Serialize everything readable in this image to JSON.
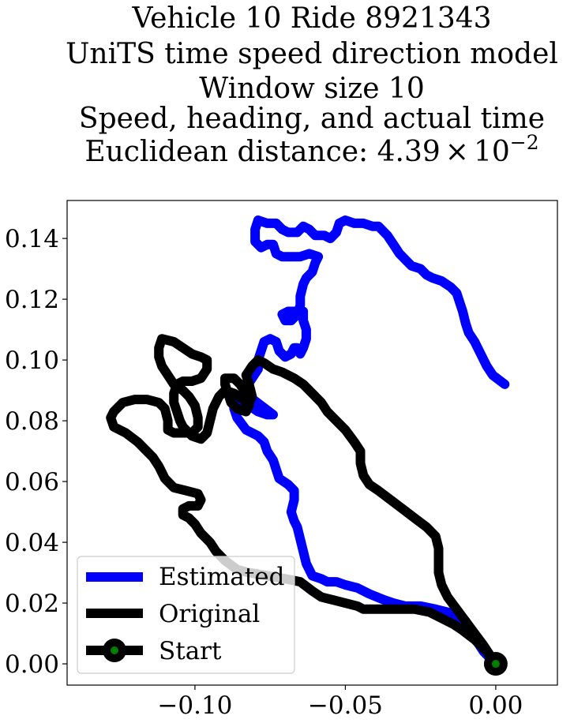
{
  "chart_data": {
    "type": "line",
    "title_lines": [
      "Vehicle 10 Ride 8921343",
      "UniTS time speed direction model",
      "Window size 10",
      "Speed, heading, and actual time"
    ],
    "title_distance_prefix": "Euclidean distance: 4.39",
    "title_distance_times": "×",
    "title_distance_base": "10",
    "title_distance_exponent": "−2",
    "xlim": [
      -0.1425,
      0.0205
    ],
    "ylim": [
      -0.007,
      0.1525
    ],
    "x_ticks": [
      {
        "value": -0.1,
        "label": "−0.10"
      },
      {
        "value": -0.05,
        "label": "−0.05"
      },
      {
        "value": 0.0,
        "label": "0.00"
      }
    ],
    "y_ticks": [
      {
        "value": 0.0,
        "label": "0.00"
      },
      {
        "value": 0.02,
        "label": "0.02"
      },
      {
        "value": 0.04,
        "label": "0.04"
      },
      {
        "value": 0.06,
        "label": "0.06"
      },
      {
        "value": 0.08,
        "label": "0.08"
      },
      {
        "value": 0.1,
        "label": "0.10"
      },
      {
        "value": 0.12,
        "label": "0.12"
      },
      {
        "value": 0.14,
        "label": "0.14"
      }
    ],
    "grid": false,
    "legend_position": "lower-left",
    "series": [
      {
        "name": "Estimated",
        "color": "#0000ff",
        "points": [
          [
            0.0,
            0.0
          ],
          [
            -0.004,
            0.004
          ],
          [
            -0.008,
            0.01
          ],
          [
            -0.01,
            0.014
          ],
          [
            -0.013,
            0.016
          ],
          [
            -0.016,
            0.017
          ],
          [
            -0.02,
            0.018
          ],
          [
            -0.025,
            0.019
          ],
          [
            -0.03,
            0.019
          ],
          [
            -0.034,
            0.02
          ],
          [
            -0.037,
            0.021
          ],
          [
            -0.042,
            0.023
          ],
          [
            -0.046,
            0.025
          ],
          [
            -0.05,
            0.026
          ],
          [
            -0.053,
            0.027
          ],
          [
            -0.056,
            0.027
          ],
          [
            -0.058,
            0.028
          ],
          [
            -0.061,
            0.029
          ],
          [
            -0.063,
            0.033
          ],
          [
            -0.064,
            0.037
          ],
          [
            -0.065,
            0.041
          ],
          [
            -0.066,
            0.045
          ],
          [
            -0.067,
            0.047
          ],
          [
            -0.068,
            0.05
          ],
          [
            -0.067,
            0.054
          ],
          [
            -0.067,
            0.057
          ],
          [
            -0.069,
            0.059
          ],
          [
            -0.072,
            0.061
          ],
          [
            -0.073,
            0.064
          ],
          [
            -0.074,
            0.067
          ],
          [
            -0.076,
            0.07
          ],
          [
            -0.077,
            0.073
          ],
          [
            -0.079,
            0.075
          ],
          [
            -0.083,
            0.077
          ],
          [
            -0.086,
            0.081
          ],
          [
            -0.087,
            0.084
          ],
          [
            -0.085,
            0.086
          ],
          [
            -0.082,
            0.085
          ],
          [
            -0.079,
            0.083
          ],
          [
            -0.076,
            0.082
          ],
          [
            -0.074,
            0.082
          ],
          [
            -0.078,
            0.085
          ],
          [
            -0.082,
            0.088
          ],
          [
            -0.083,
            0.091
          ],
          [
            -0.081,
            0.094
          ],
          [
            -0.079,
            0.097
          ],
          [
            -0.079,
            0.1
          ],
          [
            -0.078,
            0.103
          ],
          [
            -0.077,
            0.106
          ],
          [
            -0.075,
            0.107
          ],
          [
            -0.073,
            0.106
          ],
          [
            -0.072,
            0.103
          ],
          [
            -0.07,
            0.101
          ],
          [
            -0.068,
            0.102
          ],
          [
            -0.067,
            0.104
          ],
          [
            -0.066,
            0.104
          ],
          [
            -0.065,
            0.102
          ],
          [
            -0.064,
            0.104
          ],
          [
            -0.063,
            0.107
          ],
          [
            -0.063,
            0.11
          ],
          [
            -0.064,
            0.113
          ],
          [
            -0.064,
            0.116
          ],
          [
            -0.066,
            0.116
          ],
          [
            -0.069,
            0.116
          ],
          [
            -0.071,
            0.115
          ],
          [
            -0.07,
            0.113
          ],
          [
            -0.068,
            0.113
          ],
          [
            -0.066,
            0.115
          ],
          [
            -0.065,
            0.118
          ],
          [
            -0.065,
            0.121
          ],
          [
            -0.064,
            0.125
          ],
          [
            -0.063,
            0.127
          ],
          [
            -0.061,
            0.129
          ],
          [
            -0.06,
            0.132
          ],
          [
            -0.059,
            0.134
          ],
          [
            -0.062,
            0.135
          ],
          [
            -0.065,
            0.134
          ],
          [
            -0.068,
            0.134
          ],
          [
            -0.071,
            0.134
          ],
          [
            -0.073,
            0.135
          ],
          [
            -0.074,
            0.138
          ],
          [
            -0.076,
            0.138
          ],
          [
            -0.078,
            0.137
          ],
          [
            -0.08,
            0.139
          ],
          [
            -0.08,
            0.143
          ],
          [
            -0.079,
            0.146
          ],
          [
            -0.076,
            0.145
          ],
          [
            -0.073,
            0.145
          ],
          [
            -0.071,
            0.143
          ],
          [
            -0.069,
            0.142
          ],
          [
            -0.066,
            0.142
          ],
          [
            -0.064,
            0.144
          ],
          [
            -0.062,
            0.143
          ],
          [
            -0.06,
            0.141
          ],
          [
            -0.057,
            0.141
          ],
          [
            -0.055,
            0.14
          ],
          [
            -0.053,
            0.142
          ],
          [
            -0.052,
            0.145
          ],
          [
            -0.05,
            0.146
          ],
          [
            -0.047,
            0.145
          ],
          [
            -0.044,
            0.145
          ],
          [
            -0.041,
            0.144
          ],
          [
            -0.039,
            0.144
          ],
          [
            -0.036,
            0.141
          ],
          [
            -0.034,
            0.138
          ],
          [
            -0.032,
            0.135
          ],
          [
            -0.03,
            0.133
          ],
          [
            -0.028,
            0.131
          ],
          [
            -0.025,
            0.13
          ],
          [
            -0.023,
            0.128
          ],
          [
            -0.021,
            0.127
          ],
          [
            -0.018,
            0.126
          ],
          [
            -0.015,
            0.124
          ],
          [
            -0.013,
            0.122
          ],
          [
            -0.012,
            0.119
          ],
          [
            -0.011,
            0.116
          ],
          [
            -0.01,
            0.112
          ],
          [
            -0.009,
            0.109
          ],
          [
            -0.007,
            0.106
          ],
          [
            -0.005,
            0.102
          ],
          [
            -0.003,
            0.098
          ],
          [
            -0.001,
            0.095
          ],
          [
            0.003,
            0.092
          ]
        ]
      },
      {
        "name": "Original",
        "color": "#000000",
        "points": [
          [
            0.0,
            0.0
          ],
          [
            -0.003,
            0.004
          ],
          [
            -0.007,
            0.008
          ],
          [
            -0.011,
            0.011
          ],
          [
            -0.014,
            0.013
          ],
          [
            -0.018,
            0.015
          ],
          [
            -0.022,
            0.017
          ],
          [
            -0.027,
            0.018
          ],
          [
            -0.034,
            0.018
          ],
          [
            -0.04,
            0.018
          ],
          [
            -0.044,
            0.018
          ],
          [
            -0.046,
            0.019
          ],
          [
            -0.05,
            0.02
          ],
          [
            -0.054,
            0.021
          ],
          [
            -0.058,
            0.022
          ],
          [
            -0.061,
            0.024
          ],
          [
            -0.065,
            0.027
          ],
          [
            -0.07,
            0.028
          ],
          [
            -0.076,
            0.029
          ],
          [
            -0.082,
            0.03
          ],
          [
            -0.086,
            0.031
          ],
          [
            -0.09,
            0.034
          ],
          [
            -0.093,
            0.037
          ],
          [
            -0.095,
            0.04
          ],
          [
            -0.098,
            0.043
          ],
          [
            -0.1,
            0.046
          ],
          [
            -0.102,
            0.048
          ],
          [
            -0.104,
            0.049
          ],
          [
            -0.104,
            0.051
          ],
          [
            -0.102,
            0.052
          ],
          [
            -0.099,
            0.052
          ],
          [
            -0.098,
            0.054
          ],
          [
            -0.099,
            0.056
          ],
          [
            -0.103,
            0.057
          ],
          [
            -0.107,
            0.058
          ],
          [
            -0.11,
            0.061
          ],
          [
            -0.112,
            0.065
          ],
          [
            -0.114,
            0.068
          ],
          [
            -0.116,
            0.07
          ],
          [
            -0.119,
            0.073
          ],
          [
            -0.123,
            0.076
          ],
          [
            -0.127,
            0.078
          ],
          [
            -0.128,
            0.081
          ],
          [
            -0.127,
            0.083
          ],
          [
            -0.124,
            0.086
          ],
          [
            -0.12,
            0.087
          ],
          [
            -0.116,
            0.087
          ],
          [
            -0.112,
            0.086
          ],
          [
            -0.11,
            0.084
          ],
          [
            -0.109,
            0.08
          ],
          [
            -0.109,
            0.077
          ],
          [
            -0.107,
            0.076
          ],
          [
            -0.104,
            0.076
          ],
          [
            -0.101,
            0.076
          ],
          [
            -0.099,
            0.078
          ],
          [
            -0.099,
            0.081
          ],
          [
            -0.1,
            0.085
          ],
          [
            -0.102,
            0.088
          ],
          [
            -0.104,
            0.09
          ],
          [
            -0.107,
            0.092
          ],
          [
            -0.109,
            0.095
          ],
          [
            -0.111,
            0.098
          ],
          [
            -0.112,
            0.101
          ],
          [
            -0.112,
            0.104
          ],
          [
            -0.111,
            0.107
          ],
          [
            -0.107,
            0.106
          ],
          [
            -0.104,
            0.104
          ],
          [
            -0.101,
            0.102
          ],
          [
            -0.098,
            0.101
          ],
          [
            -0.096,
            0.1
          ],
          [
            -0.096,
            0.097
          ],
          [
            -0.098,
            0.094
          ],
          [
            -0.101,
            0.093
          ],
          [
            -0.104,
            0.093
          ],
          [
            -0.106,
            0.092
          ],
          [
            -0.107,
            0.089
          ],
          [
            -0.107,
            0.086
          ],
          [
            -0.106,
            0.083
          ],
          [
            -0.105,
            0.08
          ],
          [
            -0.104,
            0.078
          ],
          [
            -0.101,
            0.075
          ],
          [
            -0.098,
            0.074
          ],
          [
            -0.096,
            0.076
          ],
          [
            -0.095,
            0.08
          ],
          [
            -0.094,
            0.084
          ],
          [
            -0.092,
            0.088
          ],
          [
            -0.09,
            0.09
          ],
          [
            -0.087,
            0.089
          ],
          [
            -0.084,
            0.087
          ],
          [
            -0.082,
            0.085
          ],
          [
            -0.083,
            0.083
          ],
          [
            -0.086,
            0.084
          ],
          [
            -0.088,
            0.086
          ],
          [
            -0.089,
            0.089
          ],
          [
            -0.09,
            0.092
          ],
          [
            -0.09,
            0.094
          ],
          [
            -0.087,
            0.094
          ],
          [
            -0.085,
            0.092
          ],
          [
            -0.083,
            0.089
          ],
          [
            -0.082,
            0.086
          ],
          [
            -0.081,
            0.088
          ],
          [
            -0.082,
            0.092
          ],
          [
            -0.083,
            0.095
          ],
          [
            -0.081,
            0.098
          ],
          [
            -0.079,
            0.1
          ],
          [
            -0.077,
            0.099
          ],
          [
            -0.074,
            0.097
          ],
          [
            -0.071,
            0.096
          ],
          [
            -0.067,
            0.094
          ],
          [
            -0.064,
            0.092
          ],
          [
            -0.061,
            0.089
          ],
          [
            -0.058,
            0.086
          ],
          [
            -0.056,
            0.083
          ],
          [
            -0.053,
            0.08
          ],
          [
            -0.05,
            0.077
          ],
          [
            -0.047,
            0.073
          ],
          [
            -0.045,
            0.07
          ],
          [
            -0.045,
            0.066
          ],
          [
            -0.044,
            0.062
          ],
          [
            -0.042,
            0.059
          ],
          [
            -0.039,
            0.057
          ],
          [
            -0.035,
            0.054
          ],
          [
            -0.031,
            0.051
          ],
          [
            -0.027,
            0.048
          ],
          [
            -0.023,
            0.045
          ],
          [
            -0.02,
            0.042
          ],
          [
            -0.019,
            0.038
          ],
          [
            -0.019,
            0.034
          ],
          [
            -0.019,
            0.03
          ],
          [
            -0.018,
            0.026
          ],
          [
            -0.016,
            0.022
          ],
          [
            -0.013,
            0.018
          ],
          [
            -0.01,
            0.014
          ],
          [
            -0.007,
            0.01
          ],
          [
            -0.004,
            0.006
          ],
          [
            0.0,
            0.0
          ]
        ]
      }
    ],
    "start": {
      "label": "Start",
      "x": 0.0,
      "y": 0.0,
      "outer_color": "#000000",
      "inner_color": "#008000"
    },
    "legend": [
      {
        "label": "Estimated",
        "color": "#0000ff"
      },
      {
        "label": "Original",
        "color": "#000000"
      },
      {
        "label": "Start",
        "color": "#000000"
      }
    ]
  }
}
